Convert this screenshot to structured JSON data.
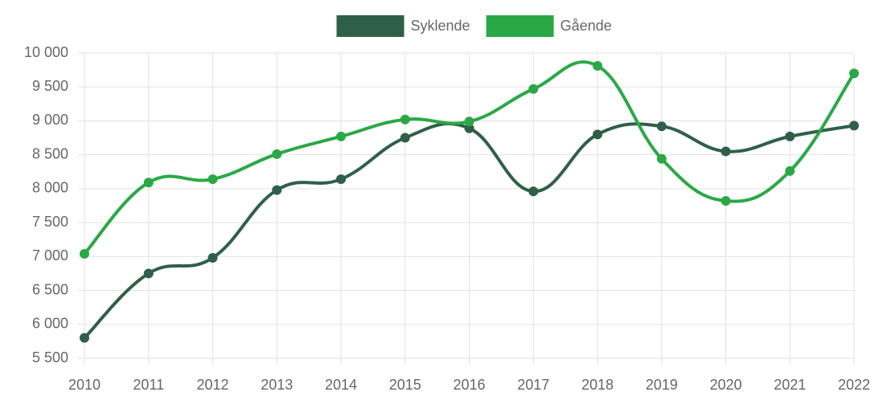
{
  "chart_data": {
    "type": "line",
    "categories": [
      "2010",
      "2011",
      "2012",
      "2013",
      "2014",
      "2015",
      "2016",
      "2017",
      "2018",
      "2019",
      "2020",
      "2021",
      "2022"
    ],
    "series": [
      {
        "name": "Syklende",
        "color": "#2f5f48",
        "values": [
          5800,
          6750,
          6980,
          7980,
          8140,
          8750,
          8890,
          7960,
          8800,
          8920,
          8550,
          8770,
          8930
        ]
      },
      {
        "name": "Gående",
        "color": "#2ba846",
        "values": [
          7040,
          8090,
          8140,
          8510,
          8770,
          9020,
          8990,
          9470,
          9810,
          8440,
          7820,
          8260,
          9700
        ]
      }
    ],
    "ylim": [
      5500,
      10000
    ],
    "yticks": [
      {
        "value": 5500,
        "label": "5 500"
      },
      {
        "value": 6000,
        "label": "6 000"
      },
      {
        "value": 6500,
        "label": "6 500"
      },
      {
        "value": 7000,
        "label": "7 000"
      },
      {
        "value": 7500,
        "label": "7 500"
      },
      {
        "value": 8000,
        "label": "8 000"
      },
      {
        "value": 8500,
        "label": "8 500"
      },
      {
        "value": 9000,
        "label": "9 000"
      },
      {
        "value": 9500,
        "label": "9 500"
      },
      {
        "value": 10000,
        "label": "10 000"
      }
    ],
    "grid": true,
    "legend": "top"
  }
}
